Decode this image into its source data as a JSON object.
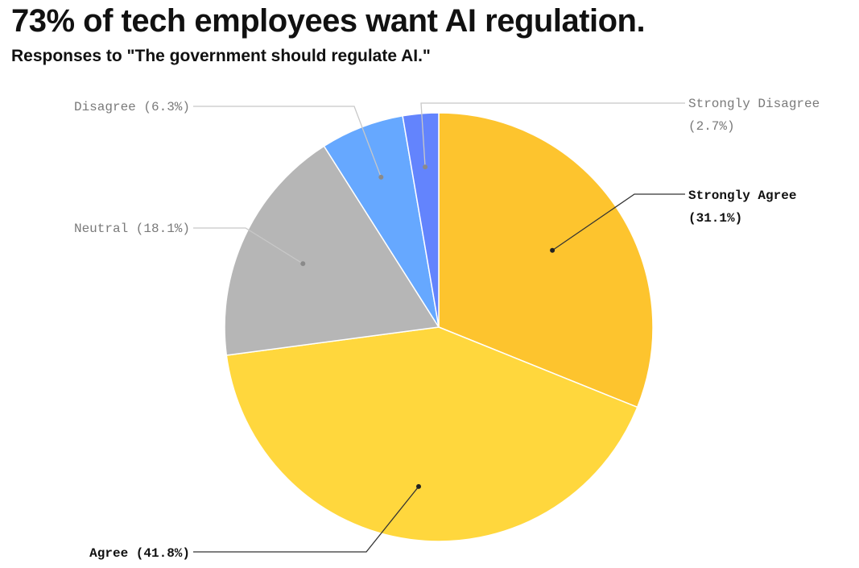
{
  "title": "73% of tech employees want AI regulation.",
  "subtitle": "Responses to \"The government should regulate AI.\"",
  "chart_data": {
    "type": "pie",
    "title": "73% of tech employees want AI regulation.",
    "subtitle": "Responses to \"The government should regulate AI.\"",
    "slices": [
      {
        "label": "Strongly Agree",
        "value": 31.1,
        "value_text": "(31.1%)",
        "color": "#fdc42e"
      },
      {
        "label": "Agree",
        "value": 41.8,
        "value_text": "(41.8%)",
        "color": "#ffd73d"
      },
      {
        "label": "Neutral",
        "value": 18.1,
        "value_text": "(18.1%)",
        "color": "#b6b6b6"
      },
      {
        "label": "Disagree",
        "value": 6.3,
        "value_text": "(6.3%)",
        "color": "#66a8ff"
      },
      {
        "label": "Strongly Disagree",
        "value": 2.7,
        "value_text": "(2.7%)",
        "color": "#6384fd"
      }
    ],
    "start_angle": "12 o'clock",
    "direction": "clockwise"
  }
}
